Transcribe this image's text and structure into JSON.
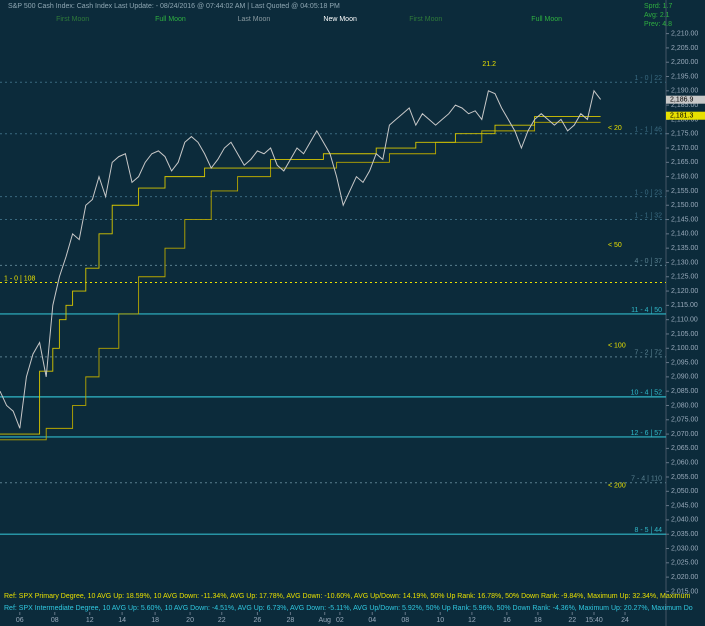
{
  "chart_data": {
    "type": "line",
    "title": "S&P 500 Cash Index:  Cash Index  Last Update: - 08/24/2016 @ 07:44:02 AM | Last Quoted @ 04:05:18 PM",
    "moon_labels": [
      {
        "text": "First Moon",
        "color": "#2f7a3a",
        "x": 8.5
      },
      {
        "text": "Full Moon",
        "color": "#2fb040",
        "x": 23.5
      },
      {
        "text": "Last Moon",
        "color": "#8a9aa0",
        "x": 36
      },
      {
        "text": "New Moon",
        "color": "#ffffff",
        "x": 49
      },
      {
        "text": "First Moon",
        "color": "#2f7a3a",
        "x": 62
      },
      {
        "text": "Full Moon",
        "color": "#2fb040",
        "x": 80.5
      }
    ],
    "stats": [
      "Sprd: 1.7",
      "Avg: 2.1",
      "Prev: 4.8"
    ],
    "peak_label": "21.2",
    "price_labels": [
      {
        "value": 2186.9,
        "label": "2,186.9"
      },
      {
        "value": 2181.3,
        "label": "2,181.3"
      }
    ],
    "xlim": [
      0,
      100
    ],
    "xticks": [
      {
        "value": 3,
        "label": "06"
      },
      {
        "value": 8.3,
        "label": "08"
      },
      {
        "value": 13.6,
        "label": "12"
      },
      {
        "value": 18.5,
        "label": "14"
      },
      {
        "value": 23.5,
        "label": "18"
      },
      {
        "value": 28.8,
        "label": "20"
      },
      {
        "value": 33.6,
        "label": "22"
      },
      {
        "value": 39,
        "label": "26"
      },
      {
        "value": 44,
        "label": "28"
      },
      {
        "value": 49.2,
        "label": "Aug"
      },
      {
        "value": 51.5,
        "label": "02"
      },
      {
        "value": 56.4,
        "label": "04"
      },
      {
        "value": 61.4,
        "label": "08"
      },
      {
        "value": 66.7,
        "label": "10"
      },
      {
        "value": 71.5,
        "label": "12"
      },
      {
        "value": 76.8,
        "label": "16"
      },
      {
        "value": 81.5,
        "label": "18"
      },
      {
        "value": 86.7,
        "label": "22"
      },
      {
        "value": 90,
        "label": "15:40"
      },
      {
        "value": 94.7,
        "label": "24"
      }
    ],
    "ylim": [
      2012,
      2220
    ],
    "yticks": [
      {
        "value": 2015,
        "label": "2,015.00"
      },
      {
        "value": 2020,
        "label": "2,020.00"
      },
      {
        "value": 2025,
        "label": "2,025.00"
      },
      {
        "value": 2030,
        "label": "2,030.00"
      },
      {
        "value": 2035,
        "label": "2,035.00"
      },
      {
        "value": 2040,
        "label": "2,040.00"
      },
      {
        "value": 2045,
        "label": "2,045.00"
      },
      {
        "value": 2050,
        "label": "2,050.00"
      },
      {
        "value": 2055,
        "label": "2,055.00"
      },
      {
        "value": 2060,
        "label": "2,060.00"
      },
      {
        "value": 2065,
        "label": "2,065.00"
      },
      {
        "value": 2070,
        "label": "2,070.00"
      },
      {
        "value": 2075,
        "label": "2,075.00"
      },
      {
        "value": 2080,
        "label": "2,080.00"
      },
      {
        "value": 2085,
        "label": "2,085.00"
      },
      {
        "value": 2090,
        "label": "2,090.00"
      },
      {
        "value": 2095,
        "label": "2,095.00"
      },
      {
        "value": 2100,
        "label": "2,100.00"
      },
      {
        "value": 2105,
        "label": "2,105.00"
      },
      {
        "value": 2110,
        "label": "2,110.00"
      },
      {
        "value": 2115,
        "label": "2,115.00"
      },
      {
        "value": 2120,
        "label": "2,120.00"
      },
      {
        "value": 2125,
        "label": "2,125.00"
      },
      {
        "value": 2130,
        "label": "2,130.00"
      },
      {
        "value": 2135,
        "label": "2,135.00"
      },
      {
        "value": 2140,
        "label": "2,140.00"
      },
      {
        "value": 2145,
        "label": "2,145.00"
      },
      {
        "value": 2150,
        "label": "2,150.00"
      },
      {
        "value": 2155,
        "label": "2,155.00"
      },
      {
        "value": 2160,
        "label": "2,160.00"
      },
      {
        "value": 2165,
        "label": "2,165.00"
      },
      {
        "value": 2170,
        "label": "2,170.00"
      },
      {
        "value": 2175,
        "label": "2,175.00"
      },
      {
        "value": 2180,
        "label": "2,180.00"
      },
      {
        "value": 2185,
        "label": "2,185.00"
      },
      {
        "value": 2190,
        "label": "2,190.00"
      },
      {
        "value": 2195,
        "label": "2,195.00"
      },
      {
        "value": 2200,
        "label": "2,200.00"
      },
      {
        "value": 2205,
        "label": "2,205.00"
      },
      {
        "value": 2210,
        "label": "2,210.00"
      }
    ],
    "series": [
      {
        "color": "#c8c8c8",
        "values": [
          2085,
          2080,
          2078,
          2072,
          2090,
          2098,
          2102,
          2090,
          2115,
          2125,
          2132,
          2140,
          2138,
          2150,
          2152,
          2160,
          2153,
          2165,
          2167,
          2168,
          2158,
          2160,
          2165,
          2168,
          2169,
          2167,
          2162,
          2165,
          2172,
          2174,
          2172,
          2168,
          2163,
          2166,
          2170,
          2172,
          2168,
          2164,
          2166,
          2169,
          2168,
          2170,
          2164,
          2162,
          2166,
          2170,
          2168,
          2172,
          2176,
          2172,
          2168,
          2160,
          2150,
          2155,
          2160,
          2158,
          2162,
          2168,
          2166,
          2178,
          2180,
          2182,
          2184,
          2178,
          2182,
          2180,
          2178,
          2180,
          2182,
          2185,
          2184,
          2182,
          2183,
          2180,
          2190,
          2189,
          2184,
          2180,
          2176,
          2170,
          2176,
          2180,
          2182,
          2180,
          2178,
          2180,
          2176,
          2178,
          2182,
          2180,
          2190,
          2187
        ]
      },
      {
        "color": "#d8c800",
        "values": [
          2070,
          2070,
          2070,
          2070,
          2070,
          2070,
          2092,
          2092,
          2100,
          2110,
          2115,
          2120,
          2120,
          2128,
          2128,
          2140,
          2140,
          2150,
          2150,
          2150,
          2150,
          2156,
          2156,
          2156,
          2156,
          2160,
          2160,
          2160,
          2160,
          2160,
          2160,
          2163,
          2163,
          2163,
          2163,
          2163,
          2163,
          2163,
          2163,
          2163,
          2163,
          2166,
          2166,
          2166,
          2166,
          2166,
          2166,
          2166,
          2166,
          2168,
          2168,
          2168,
          2168,
          2168,
          2168,
          2168,
          2168,
          2170,
          2170,
          2170,
          2170,
          2170,
          2170,
          2172,
          2172,
          2172,
          2172,
          2172,
          2172,
          2175,
          2175,
          2175,
          2175,
          2175,
          2175,
          2178,
          2178,
          2178,
          2178,
          2178,
          2178,
          2181,
          2181,
          2181,
          2181,
          2181,
          2181,
          2181,
          2181,
          2181,
          2181,
          2181
        ]
      },
      {
        "color": "#b8a800",
        "values": [
          2068,
          2068,
          2068,
          2068,
          2068,
          2068,
          2068,
          2072,
          2072,
          2072,
          2072,
          2080,
          2080,
          2090,
          2090,
          2100,
          2100,
          2100,
          2112,
          2112,
          2112,
          2125,
          2125,
          2125,
          2125,
          2135,
          2135,
          2135,
          2145,
          2145,
          2145,
          2145,
          2155,
          2155,
          2155,
          2155,
          2160,
          2160,
          2160,
          2160,
          2160,
          2163,
          2163,
          2163,
          2163,
          2163,
          2163,
          2163,
          2163,
          2163,
          2163,
          2165,
          2165,
          2165,
          2165,
          2165,
          2165,
          2165,
          2165,
          2168,
          2168,
          2168,
          2168,
          2168,
          2168,
          2168,
          2172,
          2172,
          2172,
          2172,
          2172,
          2172,
          2172,
          2176,
          2176,
          2176,
          2176,
          2176,
          2176,
          2176,
          2176,
          2179,
          2179,
          2179,
          2179,
          2179,
          2179,
          2179,
          2179,
          2179,
          2179,
          2179
        ]
      }
    ],
    "levels": [
      {
        "value": 2193,
        "label": "1 - 0 | 22",
        "color": "#3a6a80",
        "dash": true
      },
      {
        "value": 2175,
        "label": "1 - 1 | 46",
        "color": "#3a6a80",
        "dash": true
      },
      {
        "value": 2153,
        "label": "1 - 0 | 23",
        "color": "#3a6a80",
        "dash": true
      },
      {
        "value": 2145,
        "label": "1 - 1 | 32",
        "color": "#3a6a80",
        "dash": true
      },
      {
        "value": 2129,
        "label": "4 - 0 | 37",
        "color": "#5a8090",
        "dash": true
      },
      {
        "value": 2123,
        "label": "1 - 0 | 108",
        "color": "#e8e000",
        "dash": true
      },
      {
        "value": 2112,
        "label": "11 - 4 | 50",
        "color": "#30b8c8",
        "dash": false
      },
      {
        "value": 2097,
        "label": "7 - 2 | 72",
        "color": "#5a8090",
        "dash": true
      },
      {
        "value": 2083,
        "label": "10 - 4 | 52",
        "color": "#30b8c8",
        "dash": false
      },
      {
        "value": 2069,
        "label": "12 - 6 | 57",
        "color": "#30b8c8",
        "dash": false
      },
      {
        "value": 2053,
        "label": "7 - 4 | 110",
        "color": "#5a8090",
        "dash": true
      },
      {
        "value": 2035,
        "label": "8 - 5 | 44",
        "color": "#30b8c8",
        "dash": false
      }
    ],
    "ma_labels": [
      {
        "value": 2177,
        "label": "< 20"
      },
      {
        "value": 2136,
        "label": "< 50"
      },
      {
        "value": 2101,
        "label": "< 100"
      },
      {
        "value": 2052,
        "label": "< 200"
      }
    ],
    "footer": [
      {
        "text": "Ref: SPX Primary Degree, 10 AVG Up: 18.59%, 10 AVG Down: -11.34%, AVG Up: 17.78%, AVG Down: -10.60%, AVG Up/Down: 14.19%, 50%  Up Rank: 16.78%, 50% Down Rank: -9.84%, Maximum Up: 32.34%, Maximum",
        "color": "#e8e000"
      },
      {
        "text": "Ref: SPX Intermediate Degree, 10 AVG Up: 5.60%, 10 AVG Down: -4.51%, AVG Up: 6.73%, AVG Down: -5.11%, AVG Up/Down: 5.92%, 50%  Up Rank: 5.96%, 50% Down Rank: -4.36%, Maximum Up: 20.27%, Maximum Do",
        "color": "#30c8e0"
      }
    ]
  }
}
